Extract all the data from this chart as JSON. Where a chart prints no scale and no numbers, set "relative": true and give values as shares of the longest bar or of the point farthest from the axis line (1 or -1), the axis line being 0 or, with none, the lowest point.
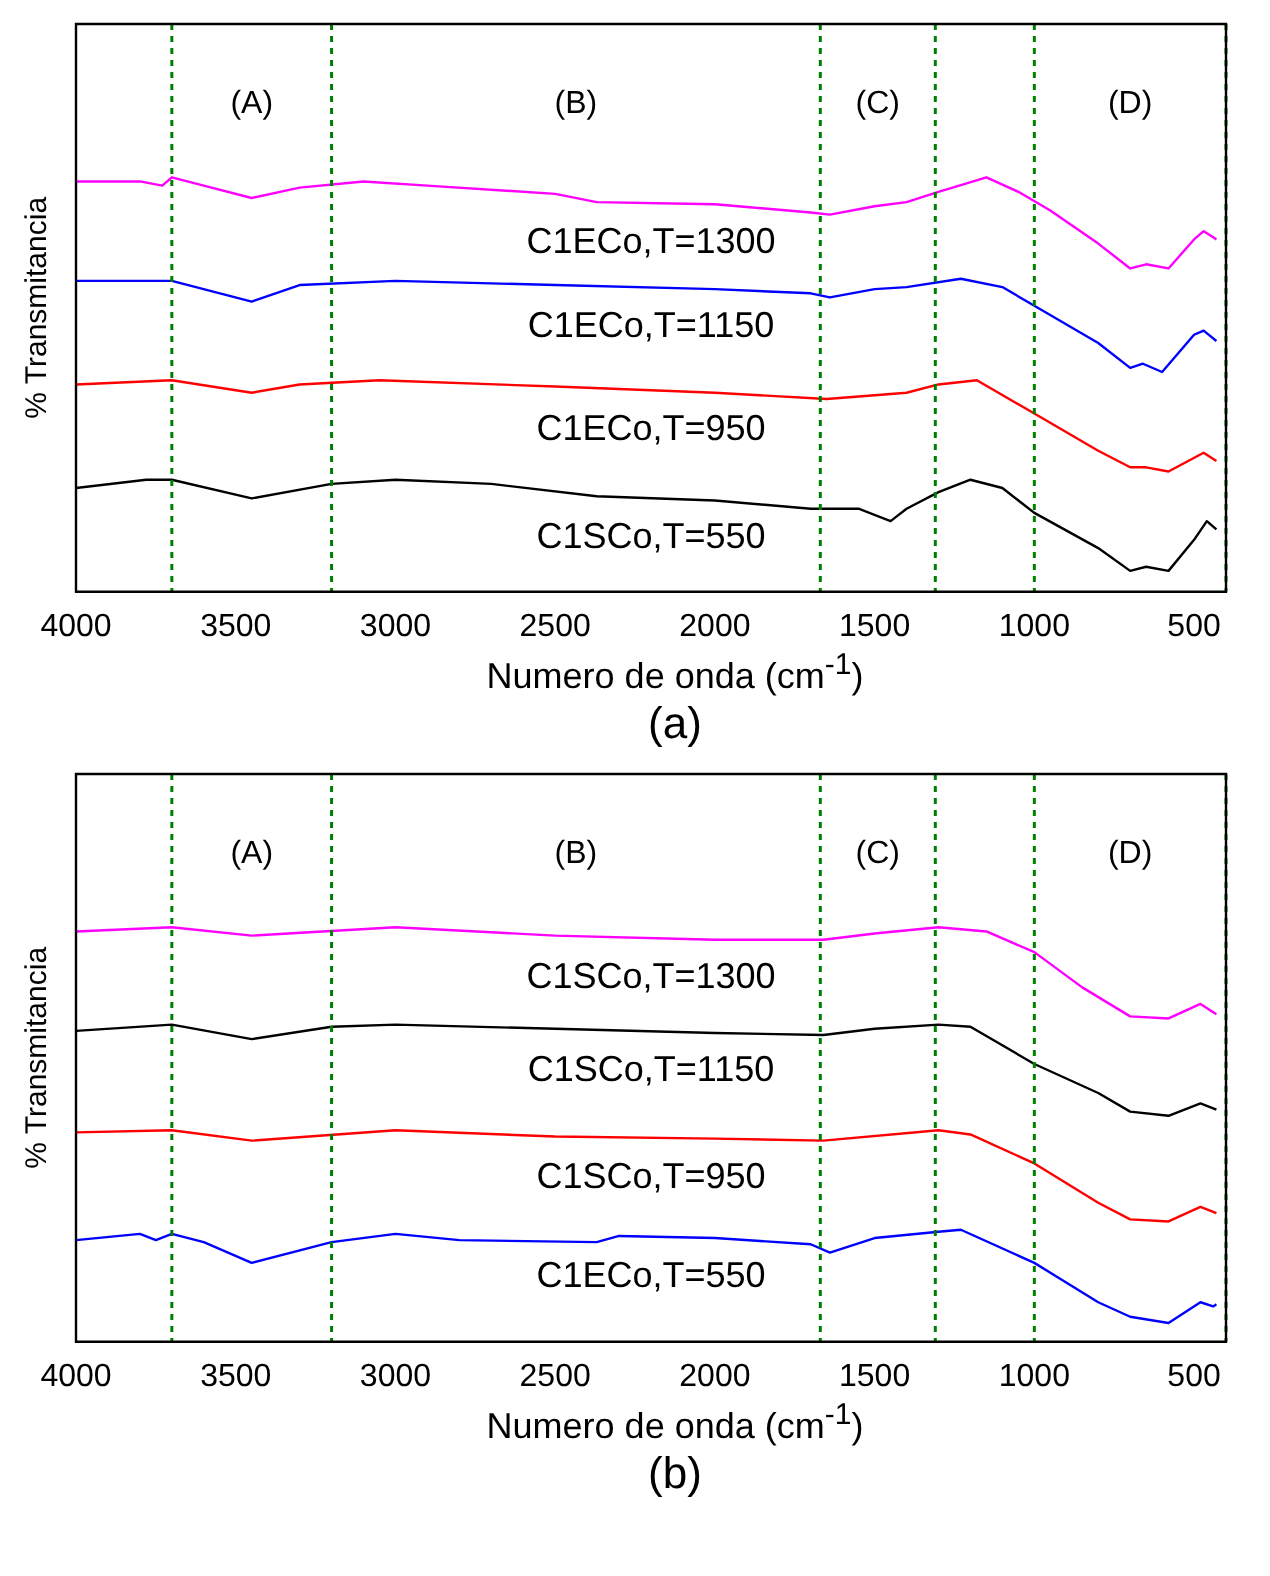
{
  "chart_data": [
    {
      "type": "line",
      "title": "(a)",
      "xlabel": "Numero de onda (cm$^{-1}$)",
      "ylabel": "% Transmitancia",
      "relative": true,
      "xlim": [
        4000,
        400
      ],
      "xticks": [
        4000,
        3500,
        3000,
        2500,
        2000,
        1500,
        1000,
        500
      ],
      "grid": false,
      "legend": false,
      "marker": "none",
      "line_style": "solid",
      "ref_lines": [
        {
          "axis": "x",
          "value": 3700,
          "color": "#008000",
          "line_style": "dashed"
        },
        {
          "axis": "x",
          "value": 3200,
          "color": "#008000",
          "line_style": "dashed"
        },
        {
          "axis": "x",
          "value": 1670,
          "color": "#008000",
          "line_style": "dashed"
        },
        {
          "axis": "x",
          "value": 1310,
          "color": "#008000",
          "line_style": "dashed"
        },
        {
          "axis": "x",
          "value": 1000,
          "color": "#008000",
          "line_style": "dashed"
        },
        {
          "axis": "x",
          "value": 400,
          "color": "#008000",
          "line_style": "dashed"
        }
      ],
      "annotations": [
        "(A)",
        "(B)",
        "(C)",
        "(D)"
      ],
      "series": [
        {
          "name": "C1ECo,T=1300",
          "color": "#ff00ff",
          "x": [
            4000,
            3800,
            3730,
            3700,
            3600,
            3450,
            3300,
            3100,
            2900,
            2500,
            2370,
            2000,
            1700,
            1640,
            1500,
            1400,
            1300,
            1150,
            1050,
            950,
            800,
            700,
            650,
            580,
            500,
            470,
            440,
            430
          ],
          "values": [
            0.99,
            0.99,
            0.98,
            1.0,
            0.98,
            0.95,
            0.975,
            0.99,
            0.98,
            0.96,
            0.94,
            0.935,
            0.915,
            0.91,
            0.93,
            0.94,
            0.965,
            1.0,
            0.965,
            0.92,
            0.84,
            0.78,
            0.79,
            0.78,
            0.85,
            0.87,
            0.855,
            0.85
          ]
        },
        {
          "name": "C1ECo,T=1150",
          "color": "#0000ff",
          "x": [
            4000,
            3700,
            3450,
            3300,
            3000,
            2500,
            2000,
            1700,
            1640,
            1500,
            1400,
            1230,
            1100,
            1000,
            800,
            700,
            660,
            600,
            500,
            470,
            430
          ],
          "values": [
            0.75,
            0.75,
            0.7,
            0.74,
            0.75,
            0.74,
            0.73,
            0.72,
            0.71,
            0.73,
            0.735,
            0.755,
            0.735,
            0.69,
            0.6,
            0.54,
            0.55,
            0.53,
            0.62,
            0.63,
            0.605
          ]
        },
        {
          "name": "C1ECo,T=950",
          "color": "#ff0000",
          "x": [
            4000,
            3700,
            3450,
            3300,
            3050,
            2500,
            2000,
            1650,
            1400,
            1300,
            1180,
            1000,
            800,
            700,
            650,
            580,
            470,
            430
          ],
          "values": [
            0.5,
            0.51,
            0.48,
            0.5,
            0.51,
            0.495,
            0.48,
            0.465,
            0.48,
            0.5,
            0.51,
            0.43,
            0.34,
            0.3,
            0.3,
            0.29,
            0.335,
            0.315
          ]
        },
        {
          "name": "C1SCo,T=550",
          "color": "#000000",
          "x": [
            4000,
            3780,
            3700,
            3450,
            3200,
            3000,
            2700,
            2370,
            2000,
            1700,
            1550,
            1450,
            1400,
            1300,
            1200,
            1100,
            1000,
            800,
            700,
            650,
            580,
            500,
            460,
            430
          ],
          "values": [
            0.25,
            0.27,
            0.27,
            0.225,
            0.26,
            0.27,
            0.26,
            0.23,
            0.22,
            0.2,
            0.2,
            0.17,
            0.2,
            0.24,
            0.27,
            0.25,
            0.19,
            0.105,
            0.05,
            0.06,
            0.05,
            0.125,
            0.17,
            0.15
          ]
        }
      ]
    },
    {
      "type": "line",
      "title": "(b)",
      "xlabel": "Numero de onda (cm$^{-1}$)",
      "ylabel": "% Transmitancia",
      "relative": true,
      "xlim": [
        4000,
        400
      ],
      "xticks": [
        4000,
        3500,
        3000,
        2500,
        2000,
        1500,
        1000,
        500
      ],
      "grid": false,
      "legend": false,
      "marker": "none",
      "line_style": "solid",
      "ref_lines": [
        {
          "axis": "x",
          "value": 3700,
          "color": "#008000",
          "line_style": "dashed"
        },
        {
          "axis": "x",
          "value": 3200,
          "color": "#008000",
          "line_style": "dashed"
        },
        {
          "axis": "x",
          "value": 1670,
          "color": "#008000",
          "line_style": "dashed"
        },
        {
          "axis": "x",
          "value": 1310,
          "color": "#008000",
          "line_style": "dashed"
        },
        {
          "axis": "x",
          "value": 1000,
          "color": "#008000",
          "line_style": "dashed"
        },
        {
          "axis": "x",
          "value": 400,
          "color": "#008000",
          "line_style": "dashed"
        }
      ],
      "annotations": [
        "(A)",
        "(B)",
        "(C)",
        "(D)"
      ],
      "series": [
        {
          "name": "C1SCo,T=1300",
          "color": "#ff00ff",
          "x": [
            4000,
            3700,
            3450,
            3000,
            2500,
            2000,
            1660,
            1500,
            1300,
            1150,
            1000,
            850,
            700,
            580,
            480,
            430
          ],
          "values": [
            0.99,
            1.0,
            0.98,
            1.0,
            0.98,
            0.97,
            0.97,
            0.985,
            1.0,
            0.99,
            0.94,
            0.855,
            0.785,
            0.78,
            0.815,
            0.79
          ]
        },
        {
          "name": "C1SCo,T=1150",
          "color": "#000000",
          "x": [
            4000,
            3700,
            3450,
            3200,
            3000,
            2500,
            2000,
            1660,
            1500,
            1300,
            1200,
            1000,
            800,
            700,
            580,
            480,
            430
          ],
          "values": [
            0.75,
            0.765,
            0.73,
            0.76,
            0.765,
            0.755,
            0.745,
            0.74,
            0.755,
            0.765,
            0.76,
            0.67,
            0.6,
            0.555,
            0.545,
            0.575,
            0.56
          ]
        },
        {
          "name": "C1SCo,T=950",
          "color": "#ff0000",
          "x": [
            4000,
            3700,
            3450,
            3000,
            2500,
            2000,
            1660,
            1300,
            1200,
            1000,
            800,
            700,
            580,
            480,
            430
          ],
          "values": [
            0.505,
            0.51,
            0.485,
            0.51,
            0.495,
            0.49,
            0.485,
            0.51,
            0.5,
            0.43,
            0.335,
            0.295,
            0.29,
            0.325,
            0.31
          ]
        },
        {
          "name": "C1ECo,T=550",
          "color": "#0000ff",
          "x": [
            4000,
            3800,
            3750,
            3700,
            3600,
            3450,
            3200,
            3000,
            2800,
            2370,
            2300,
            2000,
            1700,
            1640,
            1500,
            1300,
            1230,
            1000,
            800,
            700,
            580,
            480,
            440,
            430
          ],
          "values": [
            0.245,
            0.26,
            0.245,
            0.26,
            0.24,
            0.19,
            0.24,
            0.26,
            0.245,
            0.24,
            0.255,
            0.25,
            0.235,
            0.215,
            0.25,
            0.265,
            0.27,
            0.19,
            0.095,
            0.06,
            0.045,
            0.095,
            0.085,
            0.09
          ]
        }
      ]
    }
  ]
}
